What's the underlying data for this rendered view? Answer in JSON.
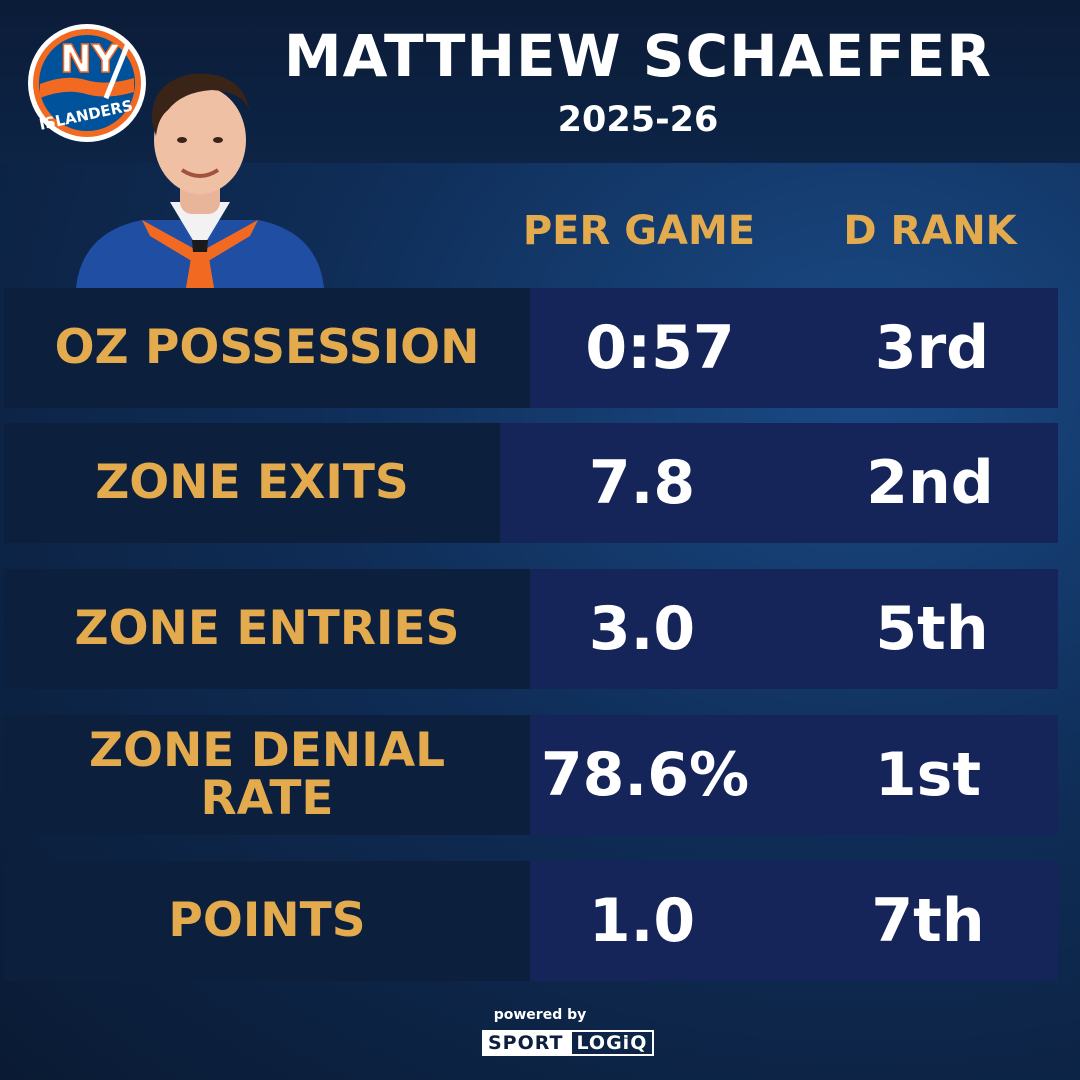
{
  "header": {
    "player_name": "MATTHEW SCHAEFER",
    "season": "2025-26",
    "team_logo_text": "NY ISLANDERS",
    "logo_icon": "islanders-logo-icon",
    "photo_icon": "player-headshot-icon"
  },
  "columns": {
    "per_game": "PER GAME",
    "rank": "D RANK"
  },
  "rows": [
    {
      "label": "OZ POSSESSION",
      "value": "0:57",
      "rank": "3rd"
    },
    {
      "label": "ZONE EXITS",
      "value": "7.8",
      "rank": "2nd"
    },
    {
      "label": "ZONE ENTRIES",
      "value": "3.0",
      "rank": "5th"
    },
    {
      "label": "ZONE DENIAL RATE",
      "value": "78.6%",
      "rank": "1st"
    },
    {
      "label": "POINTS",
      "value": "1.0",
      "rank": "7th"
    }
  ],
  "footer": {
    "powered_by": "powered by",
    "brand_left": "SPORT",
    "brand_right": "LOGiQ"
  },
  "colors": {
    "gold": "#e3ab4d",
    "navy_label": "#0c1f3c",
    "navy_value": "#15255a",
    "islanders_orange": "#f26a21",
    "islanders_blue": "#00539b"
  }
}
